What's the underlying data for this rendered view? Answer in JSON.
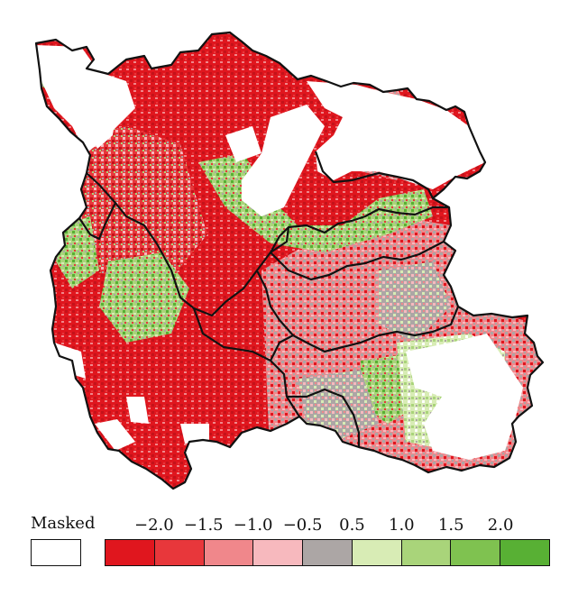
{
  "legend": {
    "masked_label": "Masked",
    "masked_color": "#ffffff",
    "classes": [
      {
        "color": "#e0161e"
      },
      {
        "color": "#e8373b"
      },
      {
        "color": "#f0878b"
      },
      {
        "color": "#f7b9be"
      },
      {
        "color": "#aca6a5"
      },
      {
        "color": "#d8ecb5"
      },
      {
        "color": "#a9d47a"
      },
      {
        "color": "#7fc250"
      },
      {
        "color": "#58b034"
      }
    ],
    "tick_labels": [
      "−2.0",
      "−1.5",
      "−1.0",
      "−0.5",
      "0.5",
      "1.0",
      "1.5",
      "2.0"
    ]
  }
}
